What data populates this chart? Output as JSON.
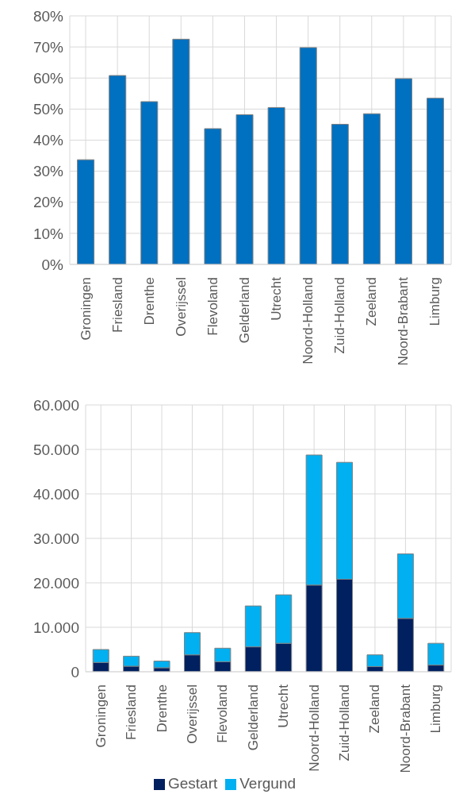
{
  "chart_data": [
    {
      "type": "bar",
      "categories": [
        "Groningen",
        "Friesland",
        "Drenthe",
        "Overijssel",
        "Flevoland",
        "Gelderland",
        "Utrecht",
        "Noord-Holland",
        "Zuid-Holland",
        "Zeeland",
        "Noord-Brabant",
        "Limburg"
      ],
      "values": [
        33.7,
        60.8,
        52.4,
        72.5,
        43.7,
        48.2,
        50.5,
        69.8,
        45.1,
        48.5,
        59.8,
        53.5
      ],
      "color": "#0070c0",
      "ylim": [
        0,
        80
      ],
      "yticks": [
        {
          "value": 0,
          "label": "0%"
        },
        {
          "value": 10,
          "label": "10%"
        },
        {
          "value": 20,
          "label": "20%"
        },
        {
          "value": 30,
          "label": "30%"
        },
        {
          "value": 40,
          "label": "40%"
        },
        {
          "value": 50,
          "label": "50%"
        },
        {
          "value": 60,
          "label": "60%"
        },
        {
          "value": 70,
          "label": "70%"
        },
        {
          "value": 80,
          "label": "80%"
        }
      ],
      "grid": true,
      "legend": false
    },
    {
      "type": "bar",
      "stacked": true,
      "categories": [
        "Groningen",
        "Friesland",
        "Drenthe",
        "Overijssel",
        "Flevoland",
        "Gelderland",
        "Utrecht",
        "Noord-Holland",
        "Zuid-Holland",
        "Zeeland",
        "Noord-Brabant",
        "Limburg"
      ],
      "series": [
        {
          "name": "Gestart",
          "color": "#002060",
          "values": [
            2100,
            1250,
            900,
            3800,
            2250,
            5600,
            6400,
            19500,
            20800,
            1150,
            12000,
            1500
          ]
        },
        {
          "name": "Vergund",
          "color": "#00b0f0",
          "values": [
            2900,
            2250,
            1500,
            5000,
            3050,
            9200,
            10900,
            29250,
            26300,
            2650,
            14500,
            4900
          ]
        }
      ],
      "ylim": [
        0,
        60000
      ],
      "yticks": [
        {
          "value": 0,
          "label": "0"
        },
        {
          "value": 10000,
          "label": "10.000"
        },
        {
          "value": 20000,
          "label": "20.000"
        },
        {
          "value": 30000,
          "label": "30.000"
        },
        {
          "value": 40000,
          "label": "40.000"
        },
        {
          "value": 50000,
          "label": "50.000"
        },
        {
          "value": 60000,
          "label": "60.000"
        }
      ],
      "grid": true,
      "legend": "bottom"
    }
  ]
}
